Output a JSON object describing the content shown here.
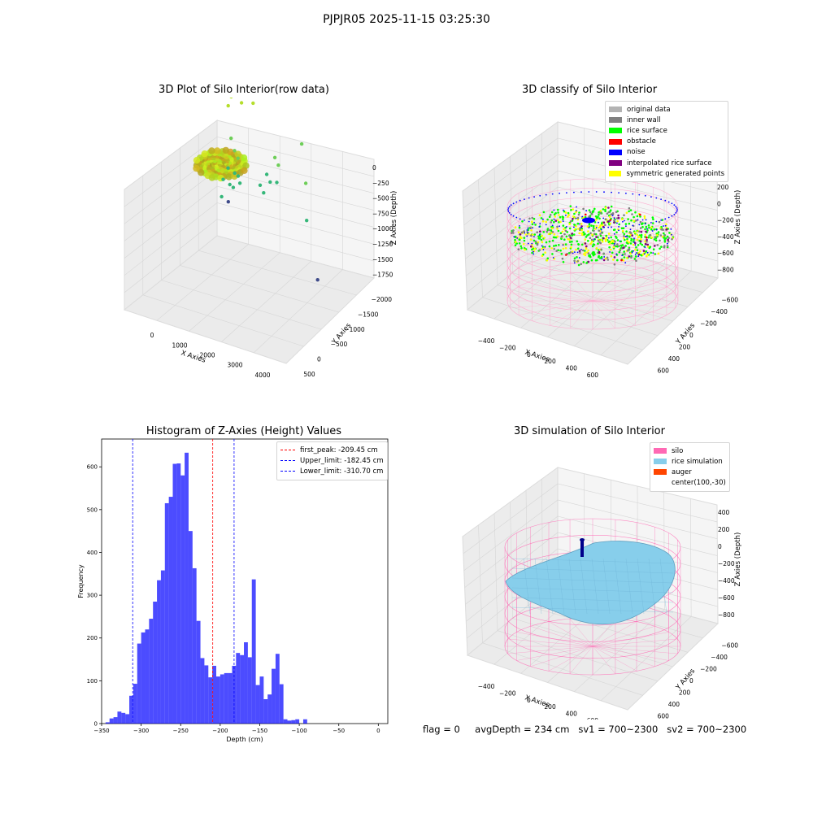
{
  "figure": {
    "suptitle": "PJPJR05 2025-11-15 03:25:30",
    "status": {
      "flag": "flag = 0",
      "avg_depth": "avgDepth = 234 cm",
      "sv1": "sv1 = 700~2300",
      "sv2": "sv2 = 700~2300"
    }
  },
  "chart_data": [
    {
      "type": "scatter",
      "projection": "3d",
      "title": "3D Plot of Silo Interior(row data)",
      "xlabel": "X Axies",
      "ylabel": "Y Axies",
      "zlabel": "Z Axies (Depth)",
      "x_ticks": [
        "0",
        "1000",
        "2000",
        "3000",
        "4000"
      ],
      "y_ticks": [
        "500",
        "0",
        "−500",
        "−1000",
        "−1500",
        "−2000"
      ],
      "z_ticks": [
        "0",
        "−250",
        "−500",
        "−750",
        "−1000",
        "−1250",
        "−1500",
        "−1750"
      ],
      "xlim": [
        -500,
        4300
      ],
      "ylim": [
        -2100,
        800
      ],
      "zlim": [
        -1800,
        100
      ],
      "colormap": "viridis",
      "points": [
        {
          "x": 300,
          "y": 400,
          "z": -120
        },
        {
          "x": 600,
          "y": 500,
          "z": -100
        },
        {
          "x": 900,
          "y": 450,
          "z": -130
        },
        {
          "x": 400,
          "y": 200,
          "z": -150
        },
        {
          "x": 700,
          "y": 300,
          "z": -110
        },
        {
          "x": 200,
          "y": 500,
          "z": -600
        },
        {
          "x": 350,
          "y": 450,
          "z": -700
        },
        {
          "x": 500,
          "y": 400,
          "z": -750
        },
        {
          "x": 300,
          "y": 300,
          "z": -850
        },
        {
          "x": 450,
          "y": 350,
          "z": -900
        },
        {
          "x": 600,
          "y": 300,
          "z": -900
        },
        {
          "x": 250,
          "y": 200,
          "z": -950
        },
        {
          "x": 400,
          "y": 250,
          "z": -1000
        },
        {
          "x": 550,
          "y": 200,
          "z": -1000
        },
        {
          "x": 700,
          "y": 250,
          "z": -950
        },
        {
          "x": 300,
          "y": 100,
          "z": -1100
        },
        {
          "x": 450,
          "y": 150,
          "z": -1150
        },
        {
          "x": 1500,
          "y": 500,
          "z": -650
        },
        {
          "x": 1650,
          "y": 450,
          "z": -700
        },
        {
          "x": 1400,
          "y": 350,
          "z": -800
        },
        {
          "x": 1550,
          "y": 300,
          "z": -850
        },
        {
          "x": 1700,
          "y": 350,
          "z": -850
        },
        {
          "x": 1300,
          "y": 250,
          "z": -900
        },
        {
          "x": 1450,
          "y": 200,
          "z": -950
        },
        {
          "x": 2200,
          "y": 600,
          "z": -450
        },
        {
          "x": 2700,
          "y": 200,
          "z": -700
        },
        {
          "x": 3200,
          "y": -300,
          "z": -900
        },
        {
          "x": 4000,
          "y": -800,
          "z": -1300
        }
      ]
    },
    {
      "type": "scatter",
      "projection": "3d",
      "title": "3D classify of Silo Interior",
      "xlabel": "X Axies",
      "ylabel": "Y Axies",
      "zlabel": "Z Axies (Depth)",
      "x_ticks": [
        "−400",
        "−200",
        "0",
        "200",
        "400",
        "600"
      ],
      "y_ticks": [
        "600",
        "400",
        "200",
        "0",
        "−200",
        "−400",
        "−600"
      ],
      "z_ticks": [
        "200",
        "0",
        "−200",
        "−400",
        "−600",
        "−800"
      ],
      "xlim": [
        -550,
        750
      ],
      "ylim": [
        -700,
        700
      ],
      "zlim": [
        -900,
        300
      ],
      "legend_position": "upper right",
      "legend": [
        {
          "label": "original data",
          "color": "#b3b3b3"
        },
        {
          "label": "inner wall",
          "color": "#808080"
        },
        {
          "label": "rice surface",
          "color": "#00ff00"
        },
        {
          "label": "obstacle",
          "color": "#ff0000"
        },
        {
          "label": "noise",
          "color": "#0000ff"
        },
        {
          "label": "interpolated rice surface",
          "color": "#800080"
        },
        {
          "label": "symmetric generated points",
          "color": "#ffff00"
        }
      ],
      "silo_radius": 600,
      "silo_z_range": [
        -850,
        50
      ],
      "silo_wire_color": "#ff69b4"
    },
    {
      "type": "bar",
      "title": "Histogram of Z-Axies (Height) Values",
      "xlabel": "Depth (cm)",
      "ylabel": "Frequency",
      "bar_color": "#0000ff",
      "bar_opacity": 0.7,
      "bin_width": 5,
      "xlim": [
        -350,
        12
      ],
      "ylim": [
        0,
        665
      ],
      "x_ticks": [
        -350,
        -300,
        -250,
        -200,
        -150,
        -100,
        -50,
        0
      ],
      "x_tick_labels": [
        "−350",
        "−300",
        "−250",
        "−200",
        "−150",
        "−100",
        "−50",
        "0"
      ],
      "y_ticks": [
        0,
        100,
        200,
        300,
        400,
        500,
        600
      ],
      "bins": [
        {
          "start": -345,
          "count": 3
        },
        {
          "start": -340,
          "count": 12
        },
        {
          "start": -335,
          "count": 15
        },
        {
          "start": -330,
          "count": 28
        },
        {
          "start": -325,
          "count": 25
        },
        {
          "start": -320,
          "count": 22
        },
        {
          "start": -315,
          "count": 65
        },
        {
          "start": -310,
          "count": 93
        },
        {
          "start": -305,
          "count": 187
        },
        {
          "start": -300,
          "count": 213
        },
        {
          "start": -295,
          "count": 220
        },
        {
          "start": -290,
          "count": 245
        },
        {
          "start": -285,
          "count": 285
        },
        {
          "start": -280,
          "count": 335
        },
        {
          "start": -275,
          "count": 358
        },
        {
          "start": -270,
          "count": 515
        },
        {
          "start": -265,
          "count": 530
        },
        {
          "start": -260,
          "count": 607
        },
        {
          "start": -255,
          "count": 608
        },
        {
          "start": -250,
          "count": 580
        },
        {
          "start": -245,
          "count": 633
        },
        {
          "start": -240,
          "count": 450
        },
        {
          "start": -235,
          "count": 363
        },
        {
          "start": -230,
          "count": 240
        },
        {
          "start": -225,
          "count": 153
        },
        {
          "start": -220,
          "count": 136
        },
        {
          "start": -215,
          "count": 108
        },
        {
          "start": -210,
          "count": 135
        },
        {
          "start": -205,
          "count": 110
        },
        {
          "start": -200,
          "count": 115
        },
        {
          "start": -195,
          "count": 118
        },
        {
          "start": -190,
          "count": 118
        },
        {
          "start": -185,
          "count": 135
        },
        {
          "start": -180,
          "count": 165
        },
        {
          "start": -175,
          "count": 160
        },
        {
          "start": -170,
          "count": 190
        },
        {
          "start": -165,
          "count": 155
        },
        {
          "start": -160,
          "count": 337
        },
        {
          "start": -155,
          "count": 90
        },
        {
          "start": -150,
          "count": 110
        },
        {
          "start": -145,
          "count": 57
        },
        {
          "start": -140,
          "count": 68
        },
        {
          "start": -135,
          "count": 128
        },
        {
          "start": -130,
          "count": 163
        },
        {
          "start": -125,
          "count": 92
        },
        {
          "start": -120,
          "count": 10
        },
        {
          "start": -115,
          "count": 7
        },
        {
          "start": -110,
          "count": 8
        },
        {
          "start": -105,
          "count": 10
        },
        {
          "start": -100,
          "count": 0
        },
        {
          "start": -95,
          "count": 10
        }
      ],
      "reference_lines": [
        {
          "label": "first_peak: -209.45 cm",
          "x": -209.45,
          "color": "#ff0000"
        },
        {
          "label": "Upper_limit: -182.45 cm",
          "x": -182.45,
          "color": "#0000ff"
        },
        {
          "label": "Lower_limit: -310.70 cm",
          "x": -310.7,
          "color": "#0000ff"
        }
      ],
      "legend_position": "upper right"
    },
    {
      "type": "surface",
      "projection": "3d",
      "title": "3D simulation of Silo Interior",
      "xlabel": "X Axies",
      "ylabel": "Y Axies",
      "zlabel": "Z Axies (Depth)",
      "x_ticks": [
        "−400",
        "−200",
        "0",
        "200",
        "400",
        "600"
      ],
      "y_ticks": [
        "600",
        "400",
        "200",
        "0",
        "−200",
        "−400",
        "−600"
      ],
      "z_ticks": [
        "400",
        "200",
        "0",
        "−200",
        "−400",
        "−600",
        "−800"
      ],
      "xlim": [
        -550,
        750
      ],
      "ylim": [
        -700,
        700
      ],
      "zlim": [
        -900,
        500
      ],
      "legend_position": "upper right",
      "legend": [
        {
          "label": "silo",
          "color": "#ff69b4"
        },
        {
          "label": "rice simulation",
          "color": "#87ceeb"
        },
        {
          "label": "auger",
          "color": "#ff4500"
        },
        {
          "label": "center(100,-30)",
          "color": ""
        }
      ]
    }
  ]
}
